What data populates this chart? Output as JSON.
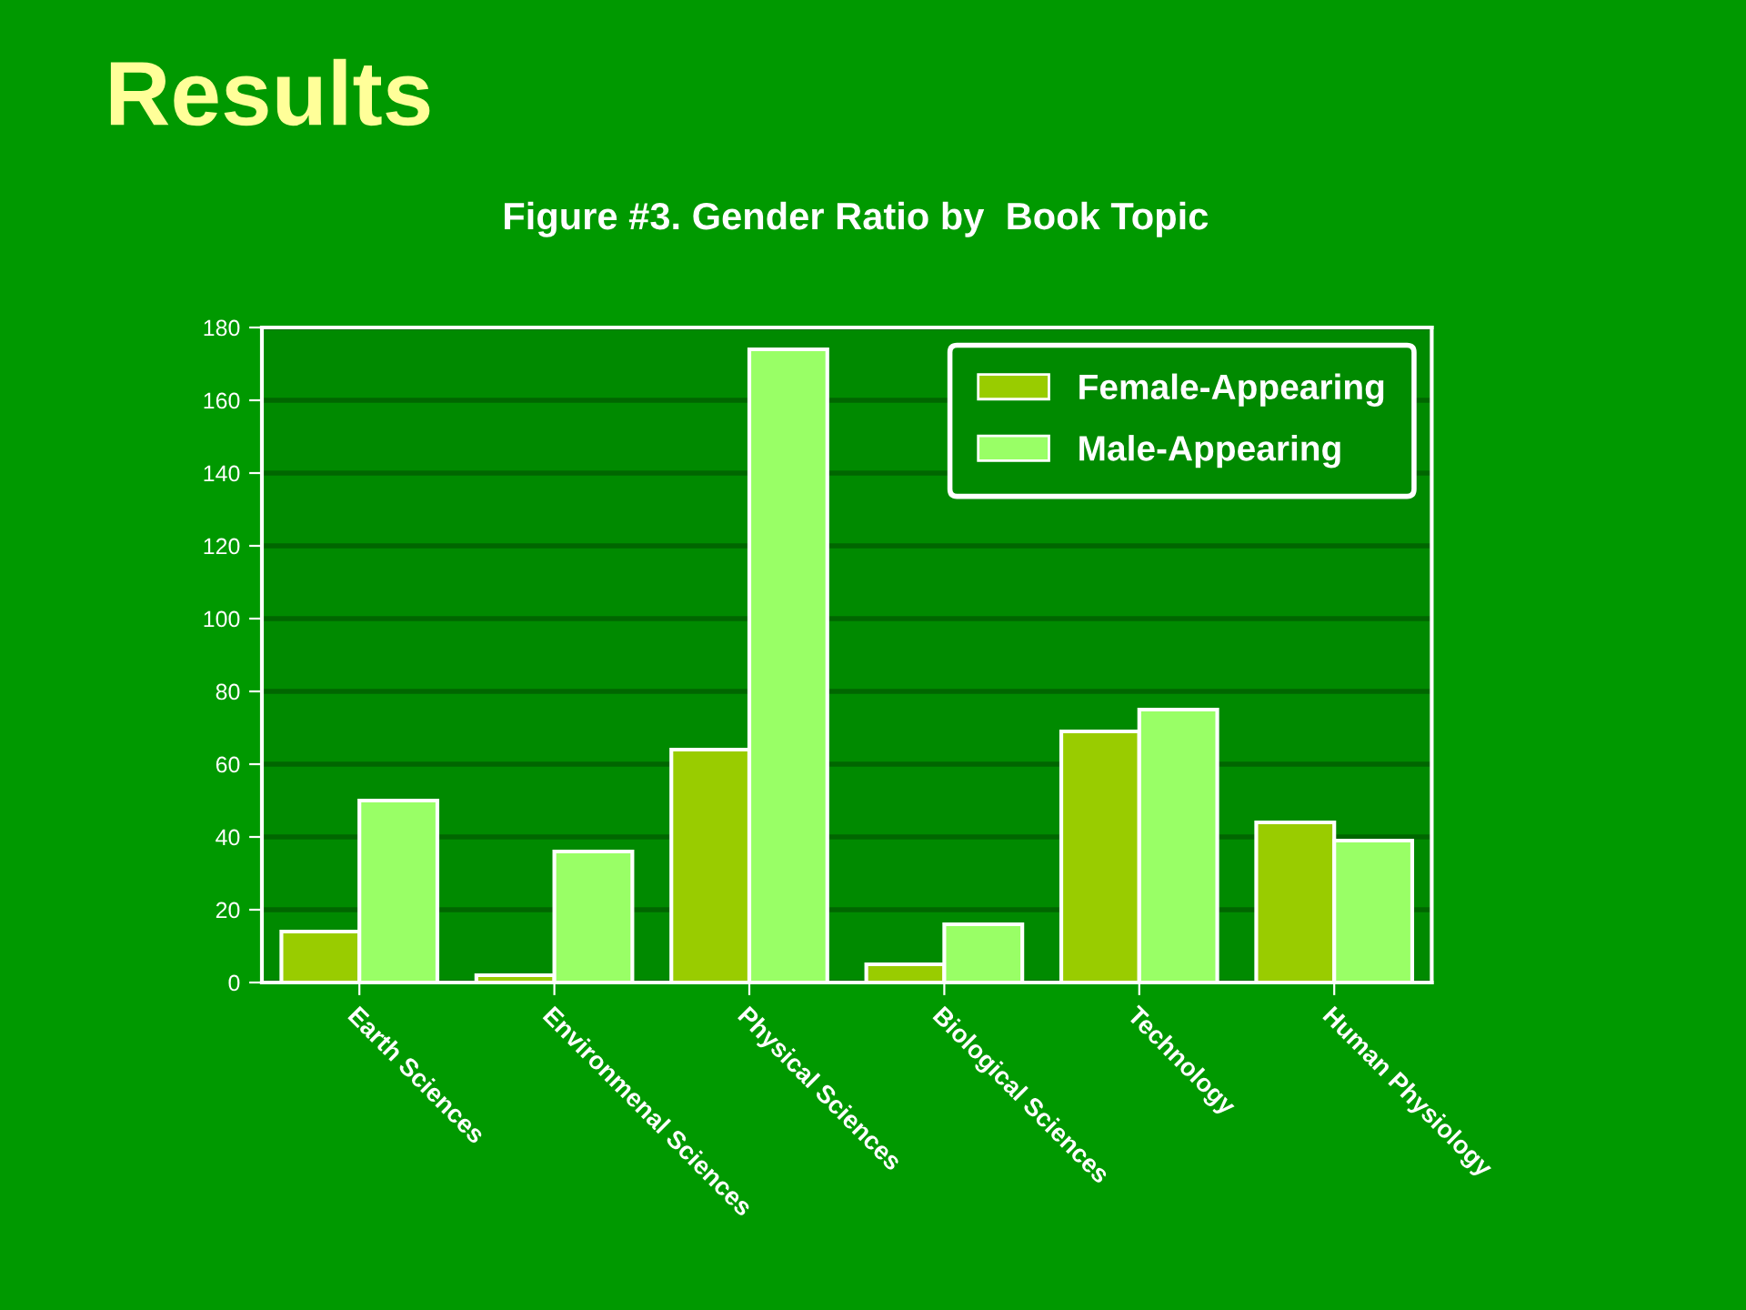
{
  "chart_data": {
    "type": "bar",
    "title": "Results",
    "subtitle": "Figure #3. Gender Ratio by  Book Topic",
    "categories": [
      "Earth Sciences",
      "Environmenal Sciences",
      "Physical Sciences",
      "Biological Sciences",
      "Technology",
      "Human Physiology"
    ],
    "series": [
      {
        "name": "Female-Appearing",
        "color": "#99cc00",
        "values": [
          14,
          2,
          64,
          5,
          69,
          44
        ]
      },
      {
        "name": "Male-Appearing",
        "color": "#99ff66",
        "values": [
          50,
          36,
          174,
          16,
          75,
          39
        ]
      }
    ],
    "ylim": [
      0,
      180
    ],
    "yticks": [
      0,
      20,
      40,
      60,
      80,
      100,
      120,
      140,
      160,
      180
    ],
    "grid": "y",
    "legend": "top right"
  }
}
